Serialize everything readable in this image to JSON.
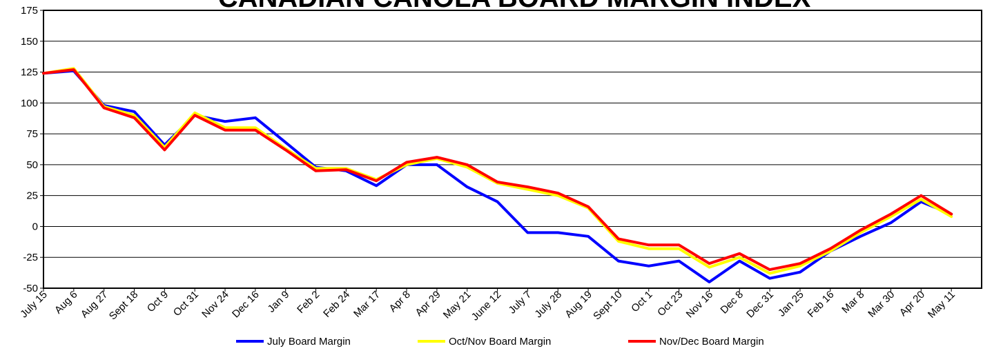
{
  "chart_data": {
    "type": "line",
    "title": "CANADIAN CANOLA BOARD MARGIN INDEX",
    "xlabel": "",
    "ylabel": "",
    "ylim": [
      -50,
      175
    ],
    "yticks": [
      175,
      150,
      125,
      100,
      75,
      50,
      25,
      0,
      -25,
      -50
    ],
    "grid": true,
    "legend_position": "bottom",
    "x": [
      "July 15",
      "Aug 6",
      "Aug 27",
      "Sept 18",
      "Oct 9",
      "Oct 31",
      "Nov 24",
      "Dec 16",
      "Jan 9",
      "Feb 2",
      "Feb 24",
      "Mar 17",
      "Apr 8",
      "Apr 29",
      "May 21",
      "June 12",
      "July 7",
      "July 28",
      "Aug 19",
      "Sept 10",
      "Oct 1",
      "Oct 23",
      "Nov 16",
      "Dec 8",
      "Dec 31",
      "Jan 25",
      "Feb 16",
      "Mar 8",
      "Mar 30",
      "Apr 20",
      "May 11"
    ],
    "series": [
      {
        "name": "July Board Margin",
        "color": "#0000ff",
        "values": [
          124,
          126,
          98,
          93,
          66,
          90,
          85,
          88,
          68,
          48,
          45,
          33,
          50,
          50,
          32,
          20,
          -5,
          -5,
          -8,
          -28,
          -32,
          -28,
          -45,
          -28,
          -42,
          -37,
          -20,
          -8,
          3,
          20,
          10
        ]
      },
      {
        "name": "Oct/Nov Board Margin",
        "color": "#ffff00",
        "values": [
          124,
          128,
          97,
          90,
          64,
          92,
          80,
          80,
          63,
          47,
          47,
          38,
          50,
          55,
          48,
          35,
          30,
          25,
          15,
          -12,
          -18,
          -18,
          -33,
          -25,
          -38,
          -32,
          -20,
          -5,
          8,
          22,
          8
        ]
      },
      {
        "name": "Nov/Dec Board Margin",
        "color": "#ff0000",
        "values": [
          124,
          127,
          96,
          88,
          62,
          90,
          78,
          78,
          62,
          45,
          46,
          37,
          52,
          56,
          50,
          36,
          32,
          27,
          16,
          -10,
          -15,
          -15,
          -30,
          -22,
          -35,
          -30,
          -18,
          -3,
          10,
          25,
          10
        ]
      }
    ]
  }
}
